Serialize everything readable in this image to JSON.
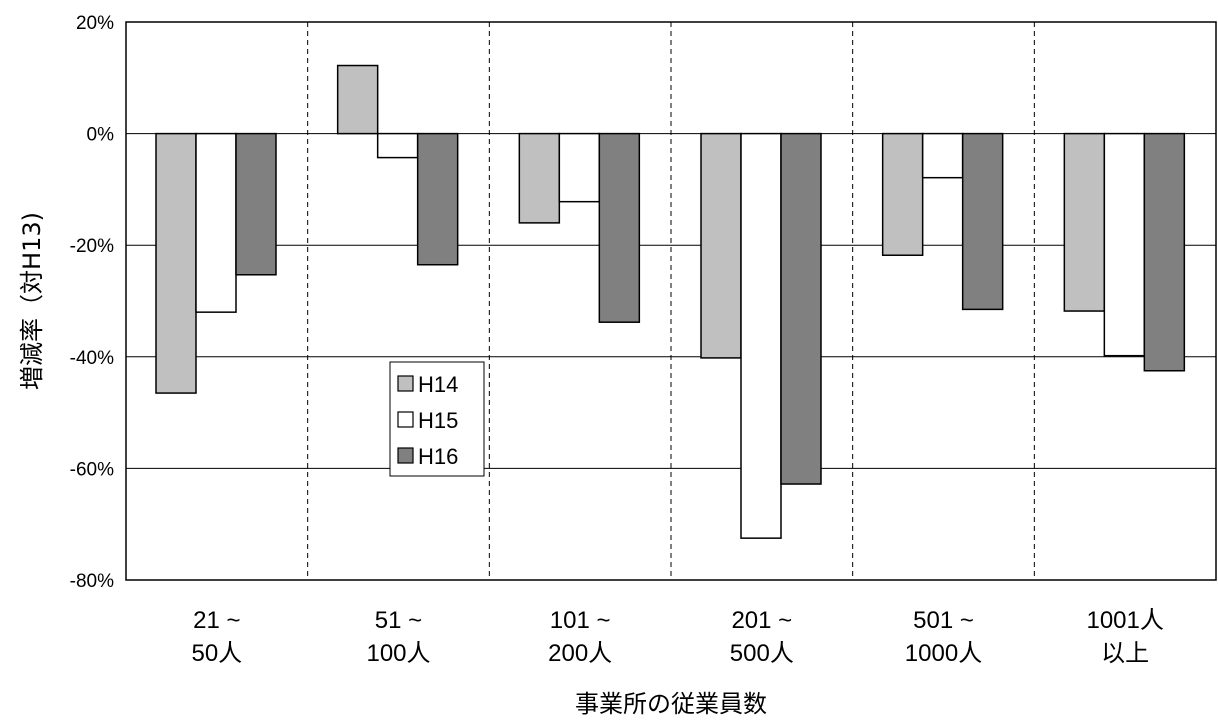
{
  "chart_data": {
    "type": "bar",
    "categories": [
      [
        "21 ~",
        "50人"
      ],
      [
        "51 ~",
        "100人"
      ],
      [
        "101 ~",
        "200人"
      ],
      [
        "201 ~",
        "500人"
      ],
      [
        "501 ~",
        "1000人"
      ],
      [
        "1001人",
        "以上"
      ]
    ],
    "series": [
      {
        "name": "H14",
        "color": "#c0c0c0",
        "values": [
          -46.5,
          12.2,
          -16.0,
          -40.2,
          -21.8,
          -31.8
        ]
      },
      {
        "name": "H15",
        "color": "#ffffff",
        "values": [
          -32.0,
          -4.3,
          -12.2,
          -72.5,
          -7.9,
          -39.8
        ]
      },
      {
        "name": "H16",
        "color": "#808080",
        "values": [
          -25.3,
          -23.5,
          -33.8,
          -62.8,
          -31.5,
          -42.5
        ]
      }
    ],
    "yticks": [
      "20%",
      "0%",
      "-20%",
      "-40%",
      "-60%",
      "-80%"
    ],
    "ylim": [
      -80,
      20
    ],
    "xlabel": "事業所の従業員数",
    "ylabel": "増減率（対H13)",
    "legend_position": "inside-left-middle",
    "grid": {
      "horizontal": "solid",
      "vertical": "dashed"
    }
  }
}
